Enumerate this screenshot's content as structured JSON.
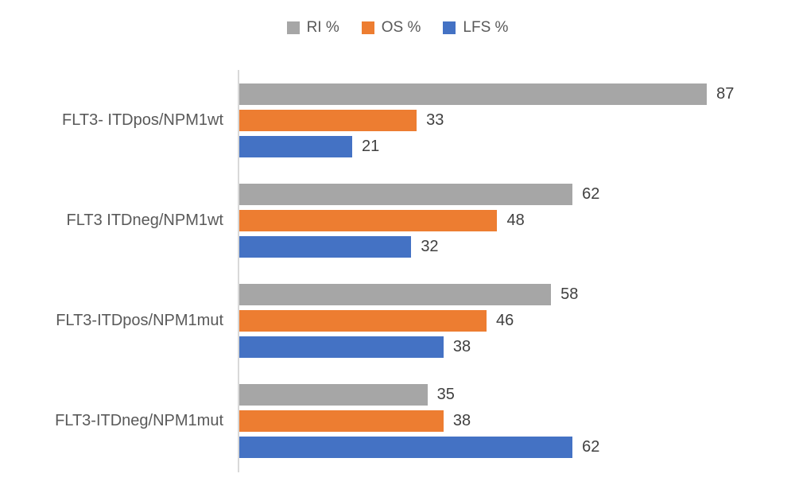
{
  "legend": [
    {
      "label": "RI %",
      "color": "#A6A6A6"
    },
    {
      "label": "OS %",
      "color": "#ED7D31"
    },
    {
      "label": "LFS %",
      "color": "#4472C4"
    }
  ],
  "chart_data": {
    "type": "bar",
    "orientation": "horizontal",
    "title": "",
    "xlabel": "",
    "ylabel": "",
    "xlim": [
      0,
      100
    ],
    "grid": false,
    "legend_position": "top-center",
    "data_labels": true,
    "categories": [
      "FLT3- ITDpos/NPM1wt",
      "FLT3 ITDneg/NPM1wt",
      "FLT3-ITDpos/NPM1mut",
      "FLT3-ITDneg/NPM1mut"
    ],
    "series": [
      {
        "name": "RI %",
        "color": "#A6A6A6",
        "values": [
          87,
          62,
          58,
          35
        ]
      },
      {
        "name": "OS %",
        "color": "#ED7D31",
        "values": [
          33,
          48,
          46,
          38
        ]
      },
      {
        "name": "LFS %",
        "color": "#4472C4",
        "values": [
          21,
          32,
          38,
          62
        ]
      }
    ]
  },
  "colors": {
    "background": "#FFFFFF",
    "axis_line": "#D9D9D9",
    "category_text": "#595959",
    "value_text": "#404040"
  }
}
